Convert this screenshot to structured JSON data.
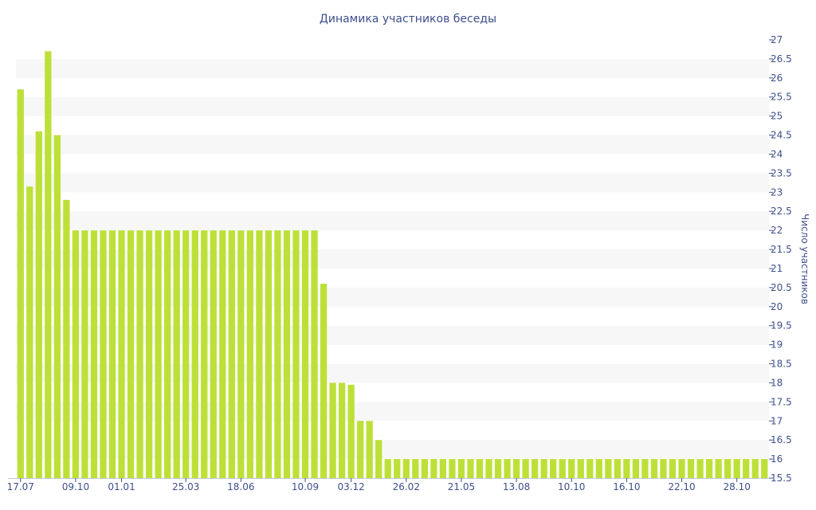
{
  "chart_data": {
    "type": "bar",
    "title": "Динамика участников беседы",
    "xlabel": "",
    "ylabel": "Число участников",
    "ylim": [
      15.5,
      27
    ],
    "y_ticks": [
      "15.5",
      "16",
      "16.5",
      "17",
      "17.5",
      "18",
      "18.5",
      "19",
      "19.5",
      "20",
      "20.5",
      "21",
      "21.5",
      "22",
      "22.5",
      "23",
      "23.5",
      "24",
      "24.5",
      "25",
      "25.5",
      "26",
      "26.5",
      "27"
    ],
    "x_tick_labels": [
      "17.07",
      "09.10",
      "01.01",
      "25.03",
      "18.06",
      "10.09",
      "03.12",
      "26.02",
      "21.05",
      "13.08",
      "10.10",
      "16.10",
      "22.10",
      "28.10"
    ],
    "x_tick_positions": [
      0,
      6,
      11,
      18,
      24,
      31,
      36,
      42,
      48,
      54,
      60,
      66,
      72,
      78
    ],
    "grid": true,
    "y_axis_side": "right",
    "bar_color": "#bde038",
    "band_color": "#f7f7f7",
    "text_color": "#3e4f8c",
    "values": [
      25.7,
      23.15,
      24.6,
      26.7,
      24.5,
      22.8,
      22,
      22,
      22,
      22,
      22,
      22,
      22,
      22,
      22,
      22,
      22,
      22,
      22,
      22,
      22,
      22,
      22,
      22,
      22,
      22,
      22,
      22,
      22,
      22,
      22,
      22,
      22,
      20.6,
      18,
      18,
      17.95,
      17,
      17,
      16.5,
      16,
      16,
      16,
      16,
      16,
      16,
      16,
      16,
      16,
      16,
      16,
      16,
      16,
      16,
      16,
      16,
      16,
      16,
      16,
      16,
      16,
      16,
      16,
      16,
      16,
      16,
      16,
      16,
      16,
      16,
      16,
      16,
      16,
      16,
      16,
      16,
      16,
      16,
      16,
      16,
      16,
      16
    ]
  }
}
